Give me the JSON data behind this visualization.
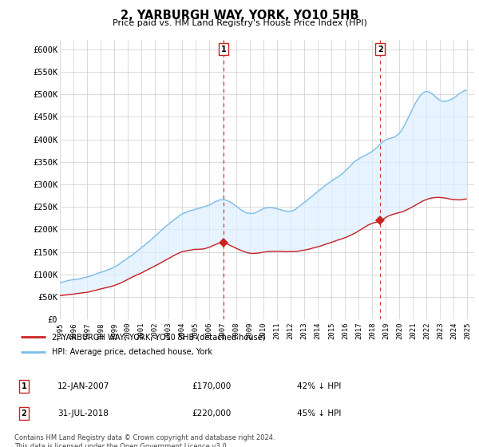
{
  "title": "2, YARBURGH WAY, YORK, YO10 5HB",
  "subtitle": "Price paid vs. HM Land Registry's House Price Index (HPI)",
  "legend_line1": "2, YARBURGH WAY, YORK, YO10 5HB (detached house)",
  "legend_line2": "HPI: Average price, detached house, York",
  "annotation1_date": "12-JAN-2007",
  "annotation1_price": "£170,000",
  "annotation1_hpi": "42% ↓ HPI",
  "annotation2_date": "31-JUL-2018",
  "annotation2_price": "£220,000",
  "annotation2_hpi": "45% ↓ HPI",
  "footer": "Contains HM Land Registry data © Crown copyright and database right 2024.\nThis data is licensed under the Open Government Licence v3.0.",
  "hpi_color": "#7abde8",
  "hpi_fill_color": "#ddeeff",
  "price_color": "#cc2222",
  "dashed_line_color": "#cc3333",
  "annotation_box_color": "#cc2222",
  "ylim": [
    0,
    620000
  ],
  "yticks": [
    0,
    50000,
    100000,
    150000,
    200000,
    250000,
    300000,
    350000,
    400000,
    450000,
    500000,
    550000,
    600000
  ],
  "ytick_labels": [
    "£0",
    "£50K",
    "£100K",
    "£150K",
    "£200K",
    "£250K",
    "£300K",
    "£350K",
    "£400K",
    "£450K",
    "£500K",
    "£550K",
    "£600K"
  ],
  "sale1_x": 2007.04,
  "sale1_y": 170000,
  "sale2_x": 2018.58,
  "sale2_y": 220000,
  "xmin": 1995,
  "xmax": 2025.5
}
